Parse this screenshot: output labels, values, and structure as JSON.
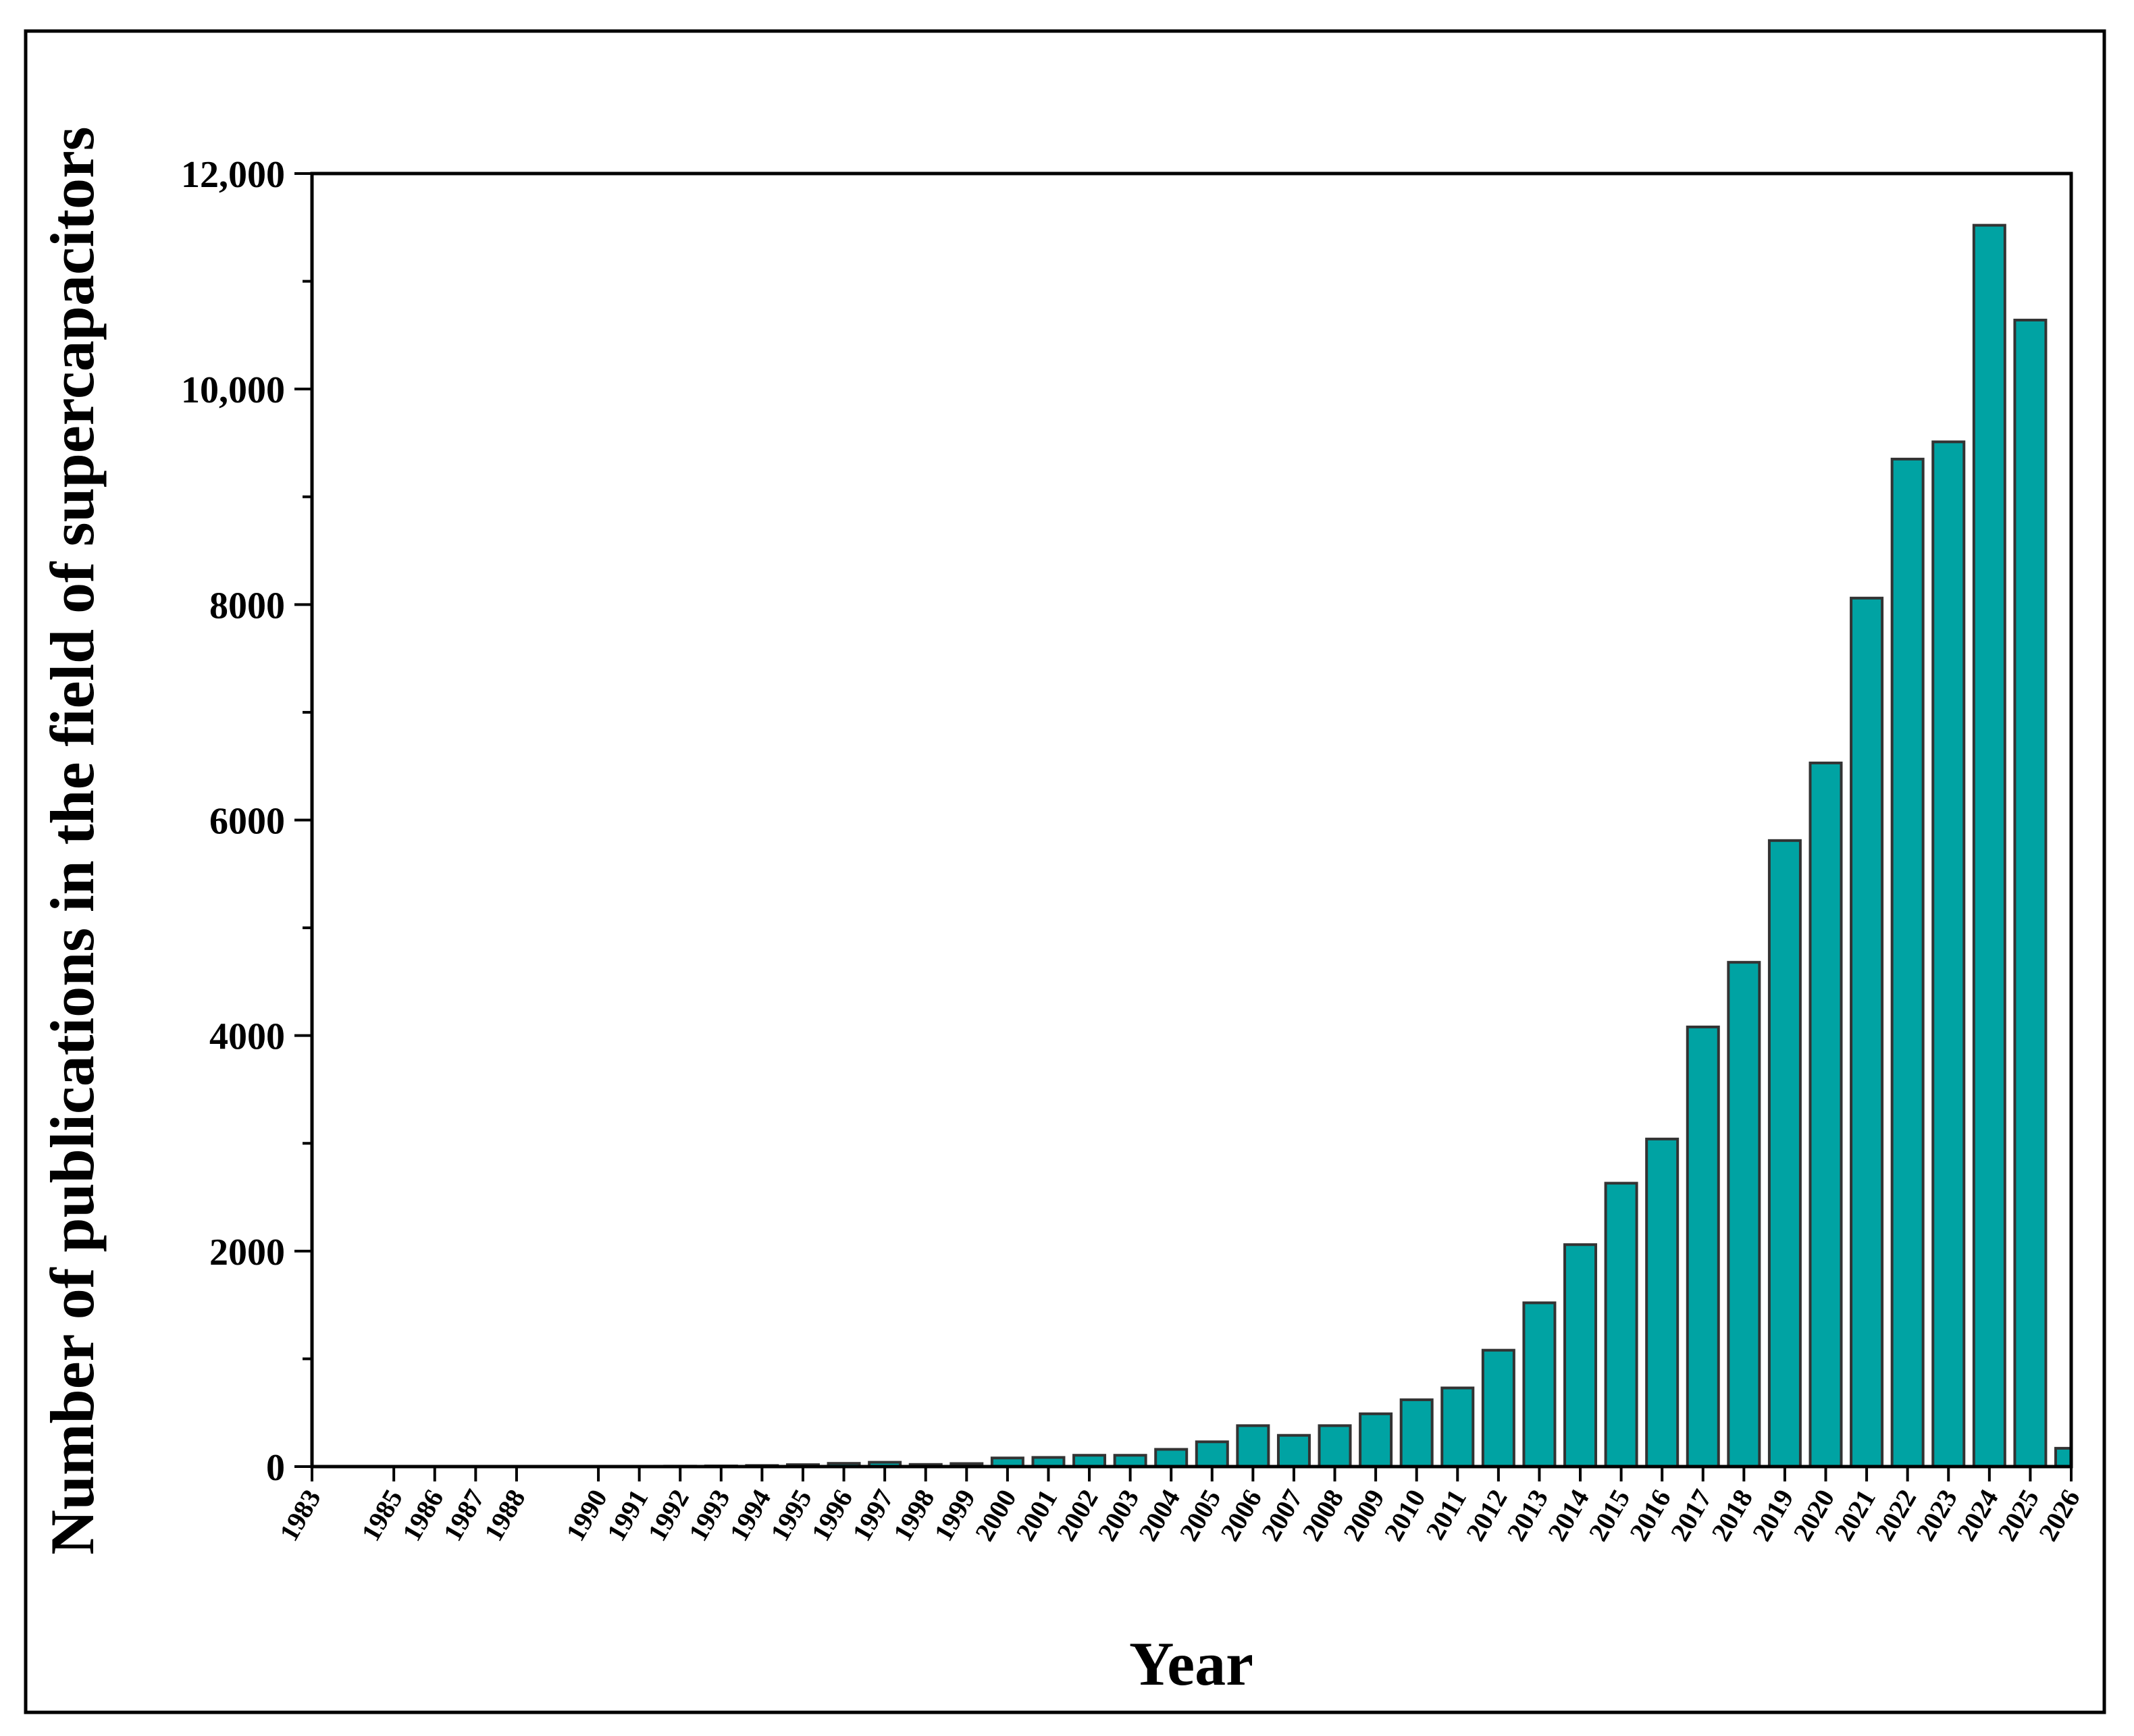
{
  "chart_data": {
    "type": "bar",
    "xlabel": "Year",
    "ylabel": "Number of publications in the field of supercapacitors",
    "ylim": [
      0,
      12000
    ],
    "y_ticks": [
      {
        "value": 0,
        "label": "0"
      },
      {
        "value": 2000,
        "label": "2000"
      },
      {
        "value": 4000,
        "label": "4000"
      },
      {
        "value": 6000,
        "label": "6000"
      },
      {
        "value": 8000,
        "label": "8000"
      },
      {
        "value": 10000,
        "label": "10,000"
      },
      {
        "value": 12000,
        "label": "12,000"
      }
    ],
    "grid": false,
    "legend": "none",
    "colors": {
      "bar_fill": "#00a3a3",
      "bar_edge": "#333333",
      "axis": "#000000",
      "frame": "#000000"
    },
    "categories": [
      "1983",
      "1985",
      "1986",
      "1987",
      "1988",
      "1990",
      "1991",
      "1992",
      "1993",
      "1994",
      "1995",
      "1996",
      "1997",
      "1998",
      "1999",
      "2000",
      "2001",
      "2002",
      "2003",
      "2004",
      "2005",
      "2006",
      "2007",
      "2008",
      "2009",
      "2010",
      "2011",
      "2012",
      "2013",
      "2014",
      "2015",
      "2016",
      "2017",
      "2018",
      "2019",
      "2020",
      "2021",
      "2022",
      "2023",
      "2024",
      "2025",
      "2026"
    ],
    "values": [
      1,
      1,
      2,
      1,
      1,
      2,
      2,
      4,
      6,
      10,
      18,
      30,
      40,
      20,
      28,
      80,
      85,
      105,
      105,
      160,
      230,
      380,
      290,
      380,
      490,
      620,
      730,
      1080,
      1520,
      2060,
      2630,
      3040,
      4080,
      4680,
      5810,
      6530,
      8060,
      9350,
      9510,
      11520,
      10640,
      170
    ]
  }
}
